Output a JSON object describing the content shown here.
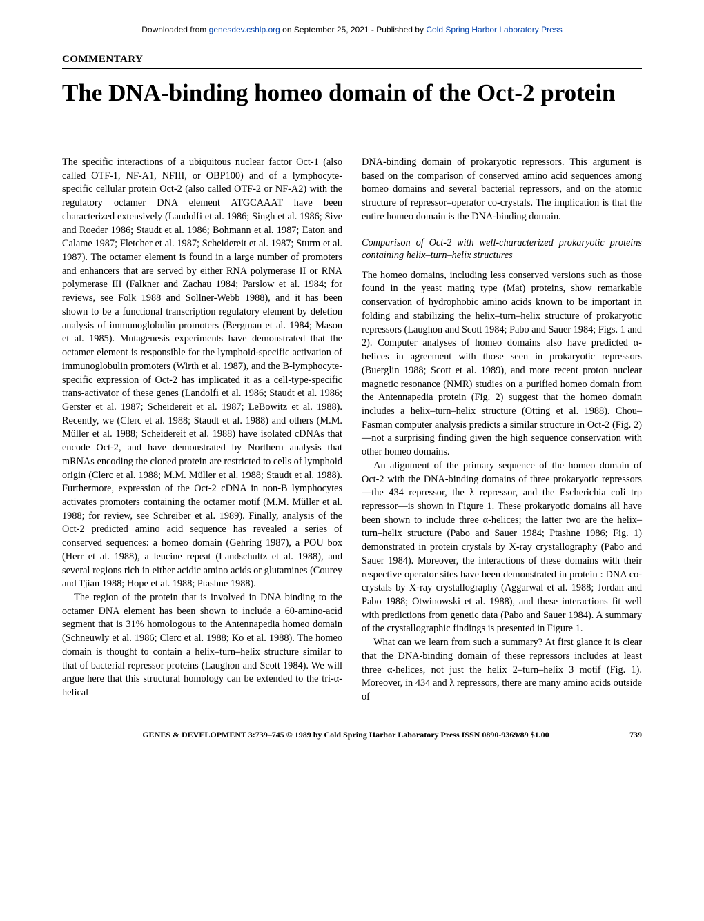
{
  "download": {
    "prefix": "Downloaded from ",
    "link1": "genesdev.cshlp.org",
    "mid": " on September 25, 2021 - Published by ",
    "link2": "Cold Spring Harbor Laboratory Press"
  },
  "section_label": "COMMENTARY",
  "title": "The DNA-binding homeo domain of the Oct-2 protein",
  "left": {
    "p1": "The specific interactions of a ubiquitous nuclear factor Oct-1 (also called OTF-1, NF-A1, NFIII, or OBP100) and of a lymphocyte-specific cellular protein Oct-2 (also called OTF-2 or NF-A2) with the regulatory octamer DNA element ATGCAAAT have been characterized extensively (Landolfi et al. 1986; Singh et al. 1986; Sive and Roeder 1986; Staudt et al. 1986; Bohmann et al. 1987; Eaton and Calame 1987; Fletcher et al. 1987; Scheidereit et al. 1987; Sturm et al. 1987). The octamer element is found in a large number of promoters and enhancers that are served by either RNA polymerase II or RNA polymerase III (Falkner and Zachau 1984; Parslow et al. 1984; for reviews, see Folk 1988 and Sollner-Webb 1988), and it has been shown to be a functional transcription regulatory element by deletion analysis of immunoglobulin promoters (Bergman et al. 1984; Mason et al. 1985). Mutagenesis experiments have demonstrated that the octamer element is responsible for the lymphoid-specific activation of immunoglobulin promoters (Wirth et al. 1987), and the B-lymphocyte-specific expression of Oct-2 has implicated it as a cell-type-specific trans-activator of these genes (Landolfi et al. 1986; Staudt et al. 1986; Gerster et al. 1987; Scheidereit et al. 1987; LeBowitz et al. 1988). Recently, we (Clerc et al. 1988; Staudt et al. 1988) and others (M.M. Müller et al. 1988; Scheidereit et al. 1988) have isolated cDNAs that encode Oct-2, and have demonstrated by Northern analysis that mRNAs encoding the cloned protein are restricted to cells of lymphoid origin (Clerc et al. 1988; M.M. Müller et al. 1988; Staudt et al. 1988). Furthermore, expression of the Oct-2 cDNA in non-B lymphocytes activates promoters containing the octamer motif (M.M. Müller et al. 1988; for review, see Schreiber et al. 1989). Finally, analysis of the Oct-2 predicted amino acid sequence has revealed a series of conserved sequences: a homeo domain (Gehring 1987), a POU box (Herr et al. 1988), a leucine repeat (Landschultz et al. 1988), and several regions rich in either acidic amino acids or glutamines (Courey and Tjian 1988; Hope et al. 1988; Ptashne 1988).",
    "p2": "The region of the protein that is involved in DNA binding to the octamer DNA element has been shown to include a 60-amino-acid segment that is 31% homologous to the Antennapedia homeo domain (Schneuwly et al. 1986; Clerc et al. 1988; Ko et al. 1988). The homeo domain is thought to contain a helix–turn–helix structure similar to that of bacterial repressor proteins (Laughon and Scott 1984). We will argue here that this structural homology can be extended to the tri-α-helical"
  },
  "right": {
    "p1": "DNA-binding domain of prokaryotic repressors. This argument is based on the comparison of conserved amino acid sequences among homeo domains and several bacterial repressors, and on the atomic structure of repressor–operator co-crystals. The implication is that the entire homeo domain is the DNA-binding domain.",
    "subhead": "Comparison of Oct-2 with well-characterized prokaryotic proteins containing helix–turn–helix structures",
    "p2": "The homeo domains, including less conserved versions such as those found in the yeast mating type (Mat) proteins, show remarkable conservation of hydrophobic amino acids known to be important in folding and stabilizing the helix–turn–helix structure of prokaryotic repressors (Laughon and Scott 1984; Pabo and Sauer 1984; Figs. 1 and 2). Computer analyses of homeo domains also have predicted α-helices in agreement with those seen in prokaryotic repressors (Buerglin 1988; Scott et al. 1989), and more recent proton nuclear magnetic resonance (NMR) studies on a purified homeo domain from the Antennapedia protein (Fig. 2) suggest that the homeo domain includes a helix–turn–helix structure (Otting et al. 1988). Chou–Fasman computer analysis predicts a similar structure in Oct-2 (Fig. 2)—not a surprising finding given the high sequence conservation with other homeo domains.",
    "p3": "An alignment of the primary sequence of the homeo domain of Oct-2 with the DNA-binding domains of three prokaryotic repressors—the 434 repressor, the λ repressor, and the Escherichia coli trp repressor—is shown in Figure 1. These prokaryotic domains all have been shown to include three α-helices; the latter two are the helix–turn–helix structure (Pabo and Sauer 1984; Ptashne 1986; Fig. 1) demonstrated in protein crystals by X-ray crystallography (Pabo and Sauer 1984). Moreover, the interactions of these domains with their respective operator sites have been demonstrated in protein : DNA co-crystals by X-ray crystallography (Aggarwal et al. 1988; Jordan and Pabo 1988; Otwinowski et al. 1988), and these interactions fit well with predictions from genetic data (Pabo and Sauer 1984). A summary of the crystallographic findings is presented in Figure 1.",
    "p4": "What can we learn from such a summary? At first glance it is clear that the DNA-binding domain of these repressors includes at least three α-helices, not just the helix 2–turn–helix 3 motif (Fig. 1). Moreover, in 434 and λ repressors, there are many amino acids outside of"
  },
  "footer": {
    "citation": "GENES & DEVELOPMENT 3:739–745 © 1989 by Cold Spring Harbor Laboratory Press ISSN 0890-9369/89 $1.00",
    "page": "739"
  }
}
